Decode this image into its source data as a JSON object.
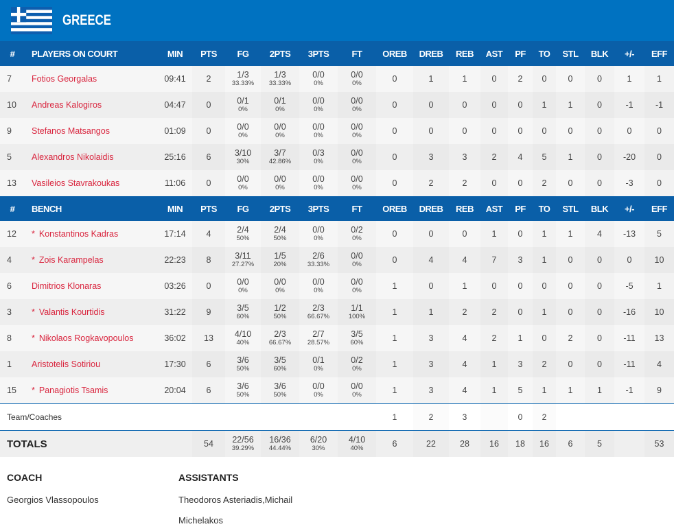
{
  "team": {
    "name": "GREECE",
    "flag_icon": "greece-flag"
  },
  "columns": [
    "#",
    "MIN",
    "PTS",
    "FG",
    "2PTS",
    "3PTS",
    "FT",
    "OREB",
    "DREB",
    "REB",
    "AST",
    "PF",
    "TO",
    "STL",
    "BLK",
    "+/-",
    "EFF"
  ],
  "sections": [
    {
      "title": "PLAYERS ON COURT",
      "players": [
        {
          "num": "7",
          "name": "Fotios Georgalas",
          "star": false,
          "min": "09:41",
          "pts": "2",
          "fg": [
            "1/3",
            "33.33%"
          ],
          "p2": [
            "1/3",
            "33.33%"
          ],
          "p3": [
            "0/0",
            "0%"
          ],
          "ft": [
            "0/0",
            "0%"
          ],
          "oreb": "0",
          "dreb": "1",
          "reb": "1",
          "ast": "0",
          "pf": "2",
          "to": "0",
          "stl": "0",
          "blk": "0",
          "pm": "1",
          "eff": "1"
        },
        {
          "num": "10",
          "name": "Andreas Kalogiros",
          "star": false,
          "min": "04:47",
          "pts": "0",
          "fg": [
            "0/1",
            "0%"
          ],
          "p2": [
            "0/1",
            "0%"
          ],
          "p3": [
            "0/0",
            "0%"
          ],
          "ft": [
            "0/0",
            "0%"
          ],
          "oreb": "0",
          "dreb": "0",
          "reb": "0",
          "ast": "0",
          "pf": "0",
          "to": "1",
          "stl": "1",
          "blk": "0",
          "pm": "-1",
          "eff": "-1"
        },
        {
          "num": "9",
          "name": "Stefanos Matsangos",
          "star": false,
          "min": "01:09",
          "pts": "0",
          "fg": [
            "0/0",
            "0%"
          ],
          "p2": [
            "0/0",
            "0%"
          ],
          "p3": [
            "0/0",
            "0%"
          ],
          "ft": [
            "0/0",
            "0%"
          ],
          "oreb": "0",
          "dreb": "0",
          "reb": "0",
          "ast": "0",
          "pf": "0",
          "to": "0",
          "stl": "0",
          "blk": "0",
          "pm": "0",
          "eff": "0"
        },
        {
          "num": "5",
          "name": "Alexandros Nikolaidis",
          "star": false,
          "min": "25:16",
          "pts": "6",
          "fg": [
            "3/10",
            "30%"
          ],
          "p2": [
            "3/7",
            "42.86%"
          ],
          "p3": [
            "0/3",
            "0%"
          ],
          "ft": [
            "0/0",
            "0%"
          ],
          "oreb": "0",
          "dreb": "3",
          "reb": "3",
          "ast": "2",
          "pf": "4",
          "to": "5",
          "stl": "1",
          "blk": "0",
          "pm": "-20",
          "eff": "0"
        },
        {
          "num": "13",
          "name": "Vasileios Stavrakoukas",
          "star": false,
          "min": "11:06",
          "pts": "0",
          "fg": [
            "0/0",
            "0%"
          ],
          "p2": [
            "0/0",
            "0%"
          ],
          "p3": [
            "0/0",
            "0%"
          ],
          "ft": [
            "0/0",
            "0%"
          ],
          "oreb": "0",
          "dreb": "2",
          "reb": "2",
          "ast": "0",
          "pf": "0",
          "to": "2",
          "stl": "0",
          "blk": "0",
          "pm": "-3",
          "eff": "0"
        }
      ]
    },
    {
      "title": "BENCH",
      "players": [
        {
          "num": "12",
          "name": "Konstantinos Kadras",
          "star": true,
          "min": "17:14",
          "pts": "4",
          "fg": [
            "2/4",
            "50%"
          ],
          "p2": [
            "2/4",
            "50%"
          ],
          "p3": [
            "0/0",
            "0%"
          ],
          "ft": [
            "0/2",
            "0%"
          ],
          "oreb": "0",
          "dreb": "0",
          "reb": "0",
          "ast": "1",
          "pf": "0",
          "to": "1",
          "stl": "1",
          "blk": "4",
          "pm": "-13",
          "eff": "5"
        },
        {
          "num": "4",
          "name": "Zois Karampelas",
          "star": true,
          "min": "22:23",
          "pts": "8",
          "fg": [
            "3/11",
            "27.27%"
          ],
          "p2": [
            "1/5",
            "20%"
          ],
          "p3": [
            "2/6",
            "33.33%"
          ],
          "ft": [
            "0/0",
            "0%"
          ],
          "oreb": "0",
          "dreb": "4",
          "reb": "4",
          "ast": "7",
          "pf": "3",
          "to": "1",
          "stl": "0",
          "blk": "0",
          "pm": "0",
          "eff": "10"
        },
        {
          "num": "6",
          "name": "Dimitrios Klonaras",
          "star": false,
          "min": "03:26",
          "pts": "0",
          "fg": [
            "0/0",
            "0%"
          ],
          "p2": [
            "0/0",
            "0%"
          ],
          "p3": [
            "0/0",
            "0%"
          ],
          "ft": [
            "0/0",
            "0%"
          ],
          "oreb": "1",
          "dreb": "0",
          "reb": "1",
          "ast": "0",
          "pf": "0",
          "to": "0",
          "stl": "0",
          "blk": "0",
          "pm": "-5",
          "eff": "1"
        },
        {
          "num": "3",
          "name": "Valantis Kourtidis",
          "star": true,
          "min": "31:22",
          "pts": "9",
          "fg": [
            "3/5",
            "60%"
          ],
          "p2": [
            "1/2",
            "50%"
          ],
          "p3": [
            "2/3",
            "66.67%"
          ],
          "ft": [
            "1/1",
            "100%"
          ],
          "oreb": "1",
          "dreb": "1",
          "reb": "2",
          "ast": "2",
          "pf": "0",
          "to": "1",
          "stl": "0",
          "blk": "0",
          "pm": "-16",
          "eff": "10"
        },
        {
          "num": "8",
          "name": "Nikolaos Rogkavopoulos",
          "star": true,
          "min": "36:02",
          "pts": "13",
          "fg": [
            "4/10",
            "40%"
          ],
          "p2": [
            "2/3",
            "66.67%"
          ],
          "p3": [
            "2/7",
            "28.57%"
          ],
          "ft": [
            "3/5",
            "60%"
          ],
          "oreb": "1",
          "dreb": "3",
          "reb": "4",
          "ast": "2",
          "pf": "1",
          "to": "0",
          "stl": "2",
          "blk": "0",
          "pm": "-11",
          "eff": "13"
        },
        {
          "num": "1",
          "name": "Aristotelis Sotiriou",
          "star": false,
          "min": "17:30",
          "pts": "6",
          "fg": [
            "3/6",
            "50%"
          ],
          "p2": [
            "3/5",
            "60%"
          ],
          "p3": [
            "0/1",
            "0%"
          ],
          "ft": [
            "0/2",
            "0%"
          ],
          "oreb": "1",
          "dreb": "3",
          "reb": "4",
          "ast": "1",
          "pf": "3",
          "to": "2",
          "stl": "0",
          "blk": "0",
          "pm": "-11",
          "eff": "4"
        },
        {
          "num": "15",
          "name": "Panagiotis Tsamis",
          "star": true,
          "min": "20:04",
          "pts": "6",
          "fg": [
            "3/6",
            "50%"
          ],
          "p2": [
            "3/6",
            "50%"
          ],
          "p3": [
            "0/0",
            "0%"
          ],
          "ft": [
            "0/0",
            "0%"
          ],
          "oreb": "1",
          "dreb": "3",
          "reb": "4",
          "ast": "1",
          "pf": "5",
          "to": "1",
          "stl": "1",
          "blk": "1",
          "pm": "-1",
          "eff": "9"
        }
      ]
    }
  ],
  "team_coaches": {
    "label": "Team/Coaches",
    "oreb": "1",
    "dreb": "2",
    "reb": "3",
    "ast": "",
    "pf": "0",
    "to": "2"
  },
  "totals": {
    "label": "TOTALS",
    "pts": "54",
    "fg": [
      "22/56",
      "39.29%"
    ],
    "p2": [
      "16/36",
      "44.44%"
    ],
    "p3": [
      "6/20",
      "30%"
    ],
    "ft": [
      "4/10",
      "40%"
    ],
    "oreb": "6",
    "dreb": "22",
    "reb": "28",
    "ast": "16",
    "pf": "18",
    "to": "16",
    "stl": "6",
    "blk": "5",
    "pm": "",
    "eff": "53"
  },
  "staff": {
    "coach_label": "COACH",
    "coach": "Georgios Vlassopoulos",
    "assistants_label": "ASSISTANTS",
    "assistants": "Theodoros Asteriadis,Michail Michelakos"
  },
  "colors": {
    "header": "#0072c1",
    "table_header": "#0a5fa8",
    "player_name": "#d9263f"
  }
}
